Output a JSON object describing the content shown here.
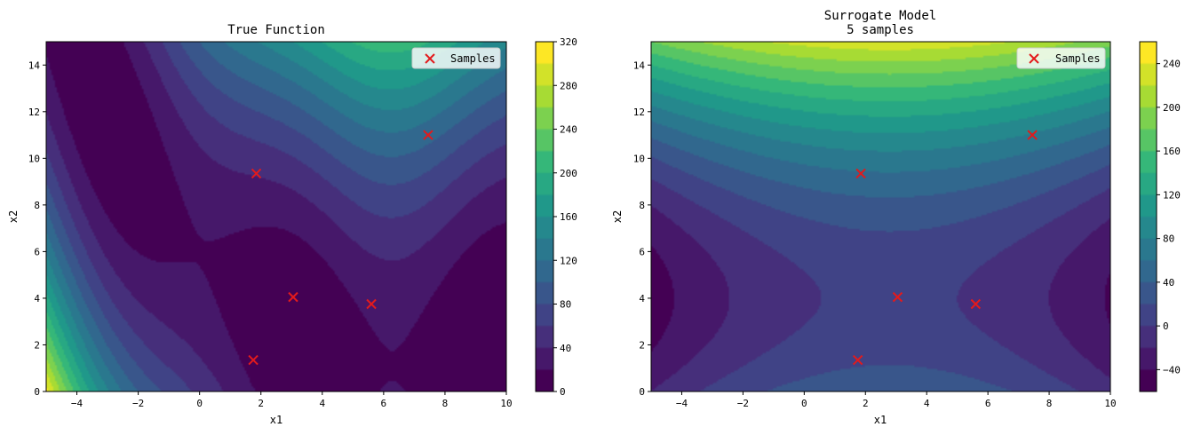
{
  "chart_data": [
    {
      "type": "contour",
      "title": "True Function",
      "xlabel": "x1",
      "ylabel": "x2",
      "xlim": [
        -5,
        10
      ],
      "ylim": [
        0,
        15
      ],
      "xticks": [
        -4,
        -2,
        0,
        2,
        4,
        6,
        8,
        10
      ],
      "yticks": [
        0,
        2,
        4,
        6,
        8,
        10,
        12,
        14
      ],
      "levels": [
        0,
        20,
        40,
        60,
        80,
        100,
        120,
        140,
        160,
        180,
        200,
        220,
        240,
        260,
        280,
        300,
        320
      ],
      "colorbar_ticks": [
        0,
        40,
        80,
        120,
        160,
        200,
        240,
        280,
        320
      ],
      "legend": {
        "label": "Samples",
        "position": "upper right"
      },
      "samples": {
        "name": "Samples",
        "x": [
          1.85,
          3.05,
          5.6,
          1.75,
          7.45
        ],
        "y": [
          9.35,
          4.05,
          3.75,
          1.35,
          11.0
        ]
      }
    },
    {
      "type": "contour",
      "title": "Surrogate Model\n5 samples",
      "xlabel": "x1",
      "ylabel": "x2",
      "xlim": [
        -5,
        10
      ],
      "ylim": [
        0,
        15
      ],
      "xticks": [
        -4,
        -2,
        0,
        2,
        4,
        6,
        8,
        10
      ],
      "yticks": [
        0,
        2,
        4,
        6,
        8,
        10,
        12,
        14
      ],
      "levels": [
        -60,
        -40,
        -20,
        0,
        20,
        40,
        60,
        80,
        100,
        120,
        140,
        160,
        180,
        200,
        220,
        240,
        260
      ],
      "colorbar_ticks": [
        -40,
        0,
        40,
        80,
        120,
        160,
        200,
        240
      ],
      "legend": {
        "label": "Samples",
        "position": "upper right"
      },
      "samples": {
        "name": "Samples",
        "x": [
          1.85,
          3.05,
          5.6,
          1.75,
          7.45
        ],
        "y": [
          9.35,
          4.05,
          3.75,
          1.35,
          11.0
        ]
      }
    }
  ],
  "colors": {
    "colormap": "viridis",
    "marker": "#e31a1c",
    "legend_bg": "#ffffff"
  }
}
